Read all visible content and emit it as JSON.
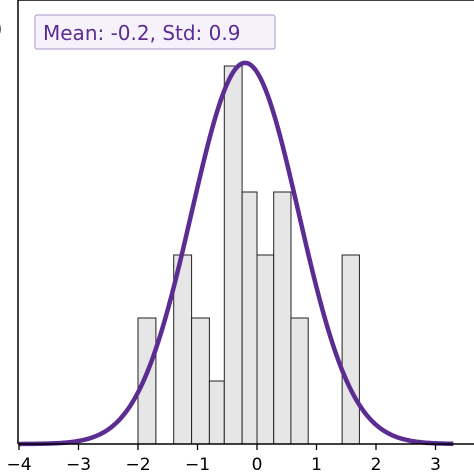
{
  "chart_data": {
    "type": "bar",
    "bins": [
      {
        "x0": -2.0,
        "x1": -1.7,
        "count": 2
      },
      {
        "x0": -1.4,
        "x1": -1.1,
        "count": 3
      },
      {
        "x0": -1.1,
        "x1": -0.8,
        "count": 2
      },
      {
        "x0": -0.8,
        "x1": -0.55,
        "count": 1
      },
      {
        "x0": -0.55,
        "x1": -0.25,
        "count": 6
      },
      {
        "x0": -0.25,
        "x1": 0.0,
        "count": 4
      },
      {
        "x0": 0.0,
        "x1": 0.28,
        "count": 3
      },
      {
        "x0": 0.28,
        "x1": 0.57,
        "count": 4
      },
      {
        "x0": 0.57,
        "x1": 0.86,
        "count": 2
      },
      {
        "x0": 1.43,
        "x1": 1.72,
        "count": 3
      }
    ],
    "fit_curve": {
      "mean": -0.2,
      "std": 0.9,
      "peak_count": 6.05
    },
    "annotation": "Mean: -0.2, Std: 0.9",
    "panel_letter": ")",
    "x_ticks": [
      -4,
      -3,
      -2,
      -1,
      0,
      1,
      2,
      3
    ],
    "x_tick_labels": [
      "−4",
      "−3",
      "−2",
      "−1",
      "0",
      "1",
      "2",
      "3"
    ],
    "xlim": [
      -4.0,
      3.3
    ],
    "ylim": [
      0,
      6.2
    ],
    "grid": false,
    "colors": {
      "bar_fill": "#e6e6e6",
      "bar_edge": "#222222",
      "curve": "#5b2c91",
      "annotation_text": "#5b2c91",
      "annotation_border": "#b9a6d6",
      "annotation_bg": "#f6f2fb"
    }
  }
}
